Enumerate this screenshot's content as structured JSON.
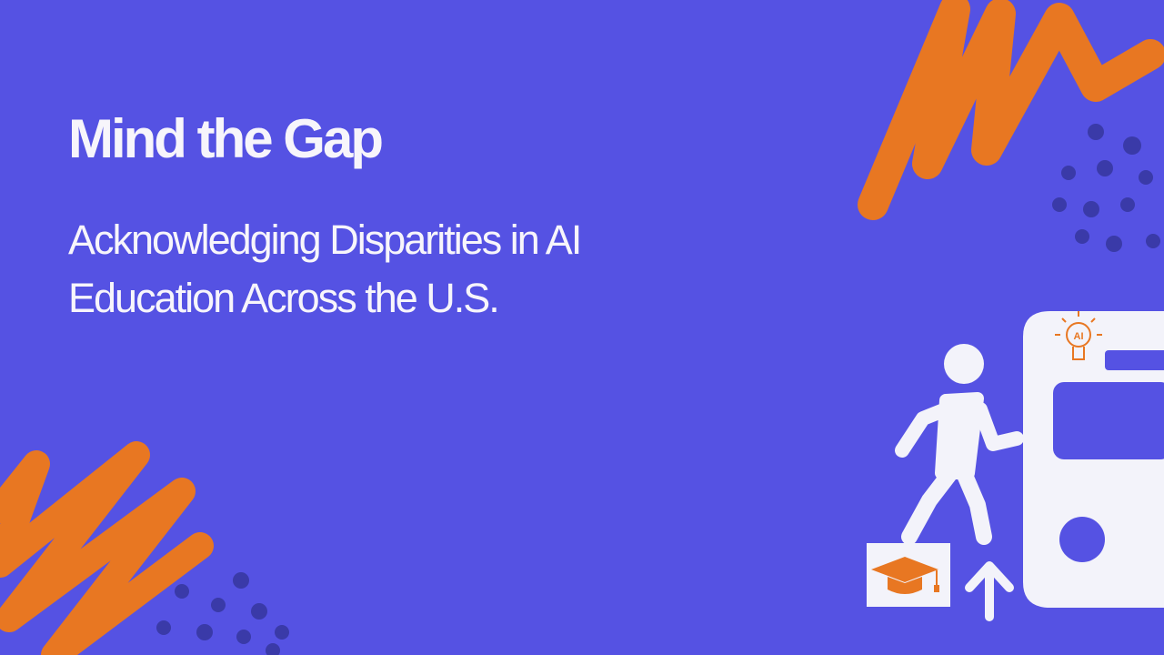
{
  "slide": {
    "title": "Mind the Gap",
    "subtitle_lines": [
      "Acknowledging Disparities in AI",
      "Education Across the U.S."
    ],
    "icon_label": "AI"
  }
}
